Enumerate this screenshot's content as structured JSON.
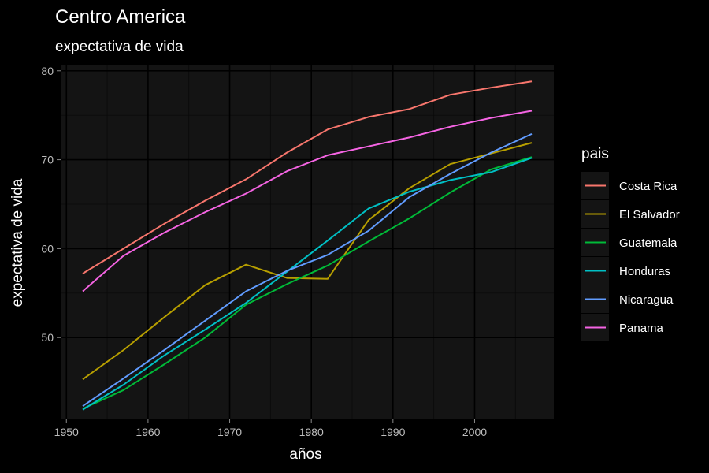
{
  "chart_data": {
    "type": "line",
    "title": "Centro America",
    "subtitle": "expectativa de vida",
    "xlabel": "años",
    "ylabel": "expectativa de vida",
    "xlim": [
      1949.3,
      2009.7
    ],
    "ylim": [
      40.8,
      80.6
    ],
    "xticks": [
      1950,
      1960,
      1970,
      1980,
      1990,
      2000
    ],
    "yticks": [
      50,
      60,
      70,
      80
    ],
    "grid": true,
    "legend": {
      "title": "pais",
      "position": "right"
    },
    "x": [
      1952,
      1957,
      1962,
      1967,
      1972,
      1977,
      1982,
      1987,
      1992,
      1997,
      2002,
      2007
    ],
    "series": [
      {
        "name": "Costa Rica",
        "color": "#F8766D",
        "values": [
          57.2,
          60.0,
          62.8,
          65.4,
          67.8,
          70.8,
          73.4,
          74.8,
          75.7,
          77.3,
          78.1,
          78.8
        ]
      },
      {
        "name": "El Salvador",
        "color": "#B79F00",
        "values": [
          45.3,
          48.6,
          52.3,
          55.9,
          58.2,
          56.7,
          56.6,
          63.2,
          66.8,
          69.5,
          70.7,
          71.9
        ]
      },
      {
        "name": "Guatemala",
        "color": "#00BA38",
        "values": [
          42.0,
          44.1,
          47.0,
          50.0,
          53.7,
          56.0,
          58.1,
          60.8,
          63.4,
          66.3,
          68.9,
          70.3
        ]
      },
      {
        "name": "Honduras",
        "color": "#00BFC4",
        "values": [
          41.9,
          44.7,
          48.0,
          50.9,
          53.9,
          57.4,
          60.9,
          64.5,
          66.4,
          67.7,
          68.6,
          70.2
        ]
      },
      {
        "name": "Nicaragua",
        "color": "#619CFF",
        "values": [
          42.3,
          45.4,
          48.6,
          51.9,
          55.2,
          57.5,
          59.3,
          62.0,
          65.8,
          68.4,
          70.8,
          72.9
        ]
      },
      {
        "name": "Panama",
        "color": "#F564E3",
        "values": [
          55.2,
          59.2,
          61.8,
          64.1,
          66.2,
          68.7,
          70.5,
          71.5,
          72.5,
          73.7,
          74.7,
          75.5
        ]
      }
    ]
  }
}
